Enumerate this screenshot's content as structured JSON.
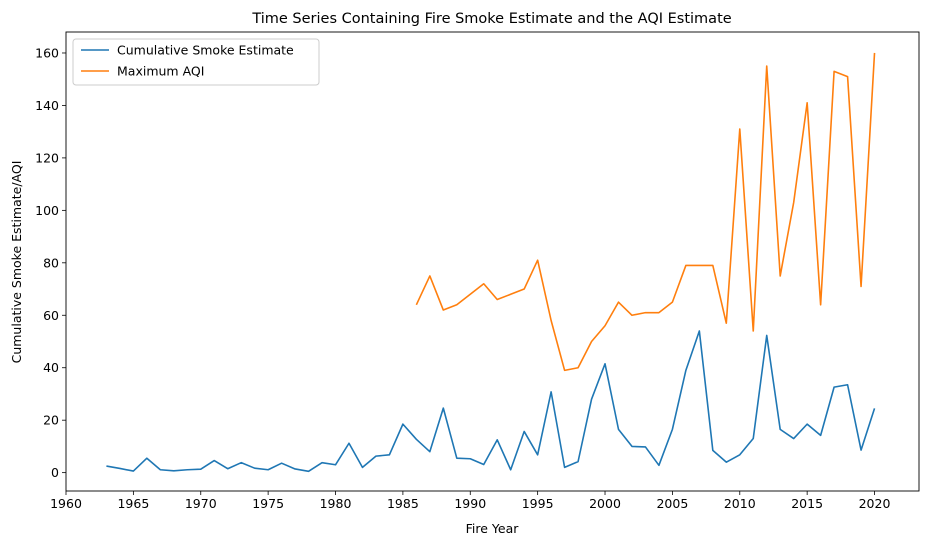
{
  "chart_data": {
    "type": "line",
    "title": "Time Series Containing Fire Smoke Estimate and the AQI Estimate",
    "xlabel": "Fire Year",
    "ylabel": "Cumulative Smoke Estimate/AQI",
    "xlim": [
      1960,
      2023.3
    ],
    "ylim": [
      -7,
      168
    ],
    "xticks": [
      1960,
      1965,
      1970,
      1975,
      1980,
      1985,
      1990,
      1995,
      2000,
      2005,
      2010,
      2015,
      2020
    ],
    "yticks": [
      0,
      20,
      40,
      60,
      80,
      100,
      120,
      140,
      160
    ],
    "grid": false,
    "legend_position": "upper-left",
    "series": [
      {
        "name": "Cumulative Smoke Estimate",
        "color": "#1f77b4",
        "x": [
          1963,
          1964,
          1965,
          1966,
          1967,
          1968,
          1969,
          1970,
          1971,
          1972,
          1973,
          1974,
          1975,
          1976,
          1977,
          1978,
          1979,
          1980,
          1981,
          1982,
          1983,
          1984,
          1985,
          1986,
          1987,
          1988,
          1989,
          1990,
          1991,
          1992,
          1993,
          1994,
          1995,
          1996,
          1997,
          1998,
          1999,
          2000,
          2001,
          2002,
          2003,
          2004,
          2005,
          2006,
          2007,
          2008,
          2009,
          2010,
          2011,
          2012,
          2013,
          2014,
          2015,
          2016,
          2017,
          2018,
          2019,
          2020
        ],
        "y": [
          2.5,
          1.6,
          0.6,
          5.5,
          1.1,
          0.7,
          1.1,
          1.3,
          4.6,
          1.5,
          3.8,
          1.7,
          1.1,
          3.6,
          1.4,
          0.5,
          3.8,
          3.0,
          11.2,
          2.0,
          6.3,
          6.8,
          18.5,
          12.7,
          8.0,
          24.6,
          5.5,
          5.3,
          3.1,
          12.5,
          1.1,
          15.7,
          6.8,
          30.8,
          2.0,
          4.2,
          28.0,
          41.5,
          16.5,
          10.0,
          9.8,
          2.8,
          16.5,
          39.0,
          54.0,
          8.5,
          4.0,
          6.8,
          13.0,
          52.3,
          16.5,
          13.0,
          18.5,
          14.2,
          32.6,
          33.5,
          8.6,
          24.5
        ]
      },
      {
        "name": "Maximum AQI",
        "color": "#ff7f0e",
        "x": [
          1986,
          1987,
          1988,
          1989,
          1990,
          1991,
          1992,
          1993,
          1994,
          1995,
          1996,
          1997,
          1998,
          1999,
          2000,
          2001,
          2002,
          2003,
          2004,
          2005,
          2006,
          2007,
          2008,
          2009,
          2010,
          2011,
          2012,
          2013,
          2014,
          2015,
          2016,
          2017,
          2018,
          2019,
          2020
        ],
        "y": [
          64,
          75,
          62,
          64,
          68,
          72,
          66,
          68,
          70,
          81,
          58,
          39,
          40,
          50,
          56,
          65,
          60,
          61,
          61,
          65,
          79,
          79,
          79,
          57,
          131,
          54,
          155,
          75,
          103,
          141,
          64,
          153,
          151,
          71,
          160
        ]
      }
    ]
  }
}
